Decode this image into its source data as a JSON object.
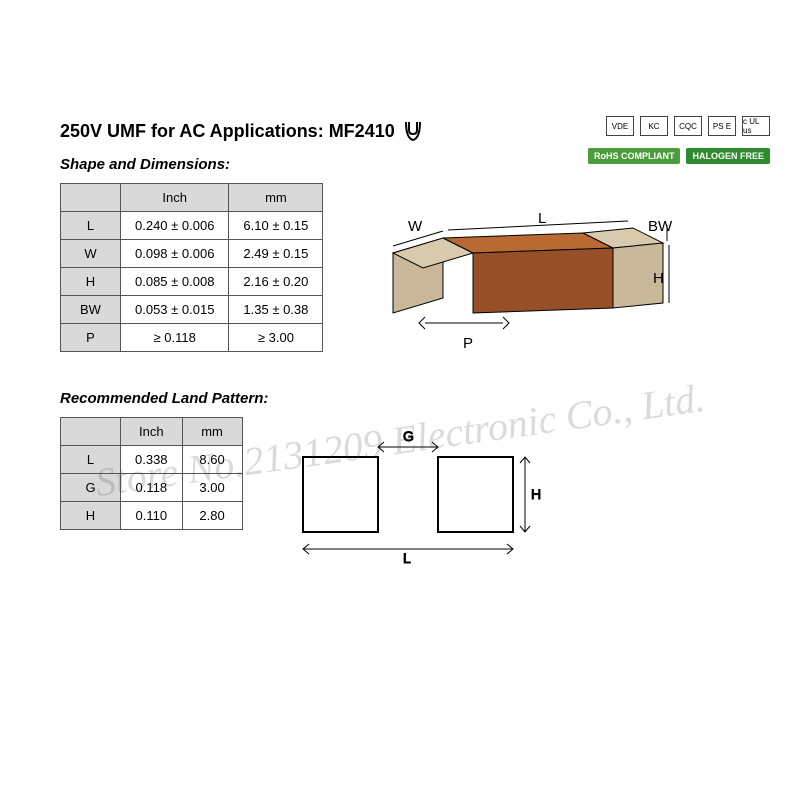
{
  "title": "250V UMF for AC Applications: MF2410",
  "certifications": [
    "VDE",
    "KC",
    "CQC",
    "PS E",
    "c UL us"
  ],
  "green_badges": [
    {
      "text": "RoHS COMPLIANT",
      "bg": "#4a9d3a"
    },
    {
      "text": "HALOGEN FREE",
      "bg": "#2e8b2e"
    }
  ],
  "shape_section": {
    "title": "Shape and Dimensions:",
    "headers": [
      "",
      "Inch",
      "mm"
    ],
    "rows": [
      {
        "label": "L",
        "inch": "0.240 ± 0.006",
        "mm": "6.10 ± 0.15"
      },
      {
        "label": "W",
        "inch": "0.098 ± 0.006",
        "mm": "2.49 ± 0.15"
      },
      {
        "label": "H",
        "inch": "0.085 ± 0.008",
        "mm": "2.16 ± 0.20"
      },
      {
        "label": "BW",
        "inch": "0.053 ± 0.015",
        "mm": "1.35 ± 0.38"
      },
      {
        "label": "P",
        "inch": "≥ 0.118",
        "mm": "≥ 3.00"
      }
    ],
    "diagram": {
      "labels": {
        "L": "L",
        "W": "W",
        "H": "H",
        "BW": "BW",
        "P": "P"
      },
      "body_color": "#a85a2a",
      "cap_color": "#c9b89a",
      "line_color": "#000000"
    }
  },
  "land_section": {
    "title": "Recommended Land Pattern:",
    "headers": [
      "",
      "Inch",
      "mm"
    ],
    "rows": [
      {
        "label": "L",
        "inch": "0.338",
        "mm": "8.60"
      },
      {
        "label": "G",
        "inch": "0.118",
        "mm": "3.00"
      },
      {
        "label": "H",
        "inch": "0.110",
        "mm": "2.80"
      }
    ],
    "diagram": {
      "labels": {
        "L": "L",
        "G": "G",
        "H": "H"
      },
      "line_color": "#000000"
    }
  },
  "watermark": "Store No.2131209 Electronic Co., Ltd."
}
